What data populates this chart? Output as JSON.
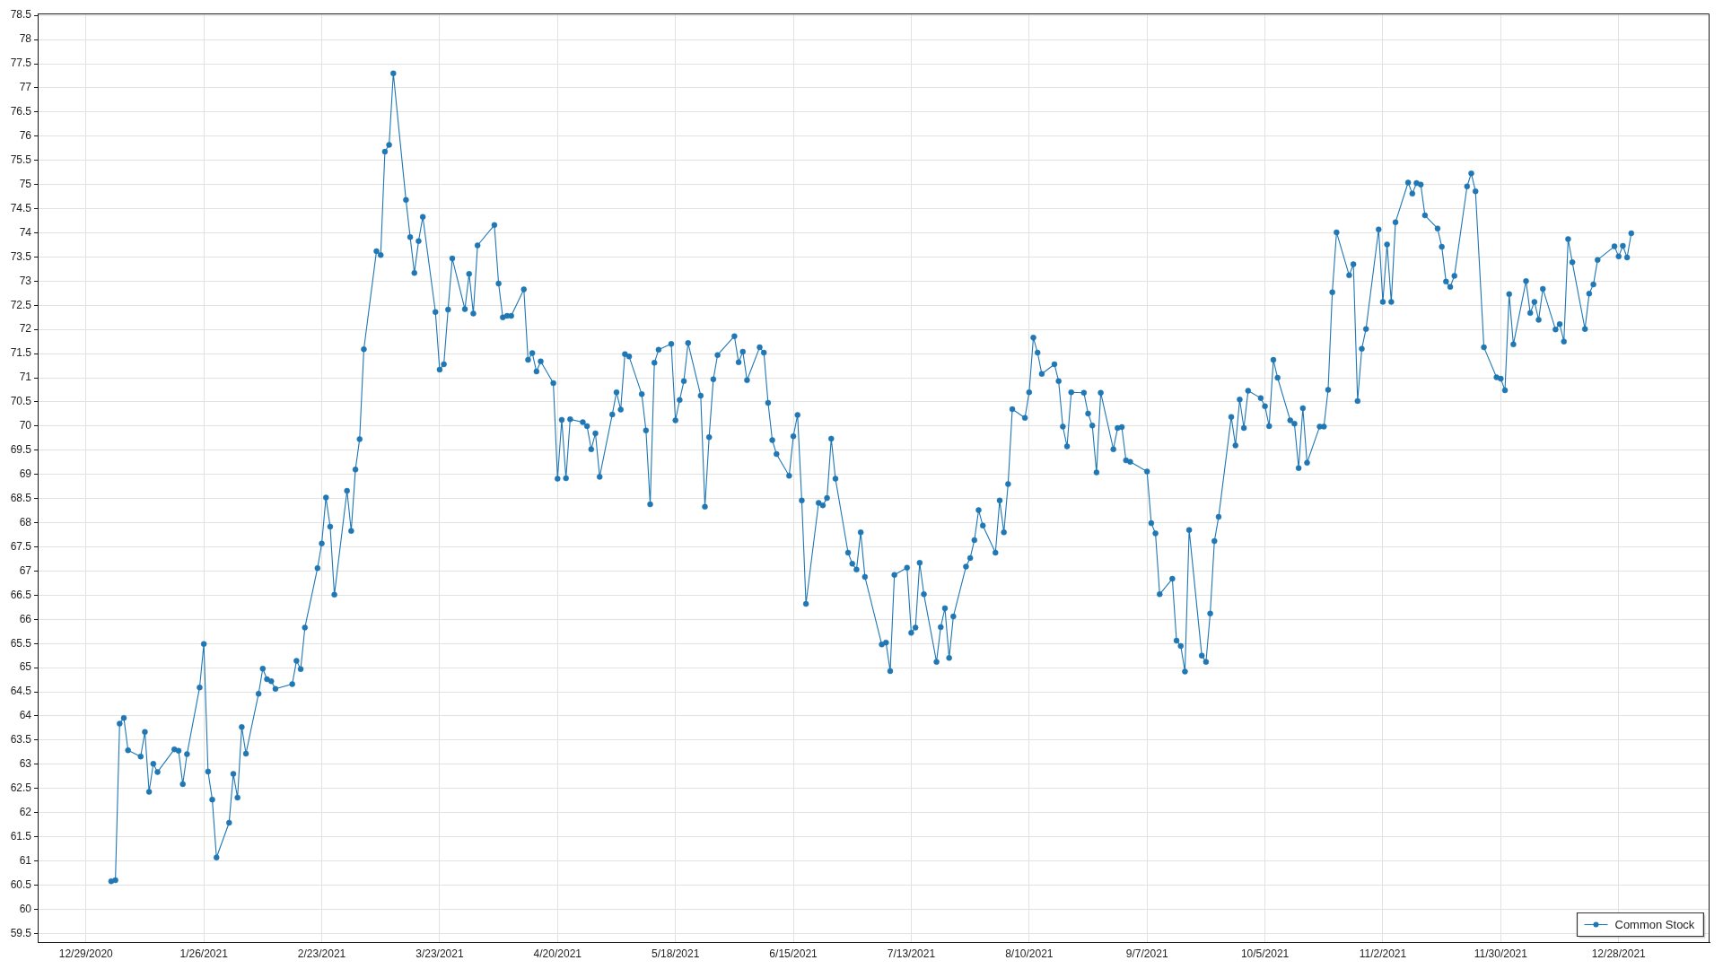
{
  "chart_data": {
    "type": "line",
    "xlim": [
      "2020-12-17T13:00",
      "2022-01-18T14:00"
    ],
    "xticks": [
      {
        "value": "2020-12-29",
        "label": "12/29/2020"
      },
      {
        "value": "2021-01-26",
        "label": "1/26/2021"
      },
      {
        "value": "2021-02-23",
        "label": "2/23/2021"
      },
      {
        "value": "2021-03-23",
        "label": "3/23/2021"
      },
      {
        "value": "2021-04-20",
        "label": "4/20/2021"
      },
      {
        "value": "2021-05-18",
        "label": "5/18/2021"
      },
      {
        "value": "2021-06-15",
        "label": "6/15/2021"
      },
      {
        "value": "2021-07-13",
        "label": "7/13/2021"
      },
      {
        "value": "2021-08-10",
        "label": "8/10/2021"
      },
      {
        "value": "2021-09-07",
        "label": "9/7/2021"
      },
      {
        "value": "2021-10-05",
        "label": "10/5/2021"
      },
      {
        "value": "2021-11-02",
        "label": "11/2/2021"
      },
      {
        "value": "2021-11-30",
        "label": "11/30/2021"
      },
      {
        "value": "2021-12-28",
        "label": "12/28/2021"
      }
    ],
    "ylim": [
      59.32,
      78.54
    ],
    "yticks": [
      59.5,
      60,
      60.5,
      61,
      61.5,
      62,
      62.5,
      63,
      63.5,
      64,
      64.5,
      65,
      65.5,
      66,
      66.5,
      67,
      67.5,
      68,
      68.5,
      69,
      69.5,
      70,
      70.5,
      71,
      71.5,
      72,
      72.5,
      73,
      73.5,
      74,
      74.5,
      75,
      75.5,
      76,
      76.5,
      77,
      77.5,
      78,
      78.5
    ],
    "grid": true,
    "legend": "bottom right",
    "marker": "circle",
    "line_style": "solid",
    "x": [
      "2021-01-04",
      "2021-01-05",
      "2021-01-06",
      "2021-01-07",
      "2021-01-08",
      "2021-01-11",
      "2021-01-12",
      "2021-01-13",
      "2021-01-14",
      "2021-01-15",
      "2021-01-19",
      "2021-01-20",
      "2021-01-21",
      "2021-01-22",
      "2021-01-25",
      "2021-01-26",
      "2021-01-27",
      "2021-01-28",
      "2021-01-29",
      "2021-02-01",
      "2021-02-02",
      "2021-02-03",
      "2021-02-04",
      "2021-02-05",
      "2021-02-08",
      "2021-02-09",
      "2021-02-10",
      "2021-02-11",
      "2021-02-12",
      "2021-02-16",
      "2021-02-17",
      "2021-02-18",
      "2021-02-19",
      "2021-02-22",
      "2021-02-23",
      "2021-02-24",
      "2021-02-25",
      "2021-02-26",
      "2021-03-01",
      "2021-03-02",
      "2021-03-03",
      "2021-03-04",
      "2021-03-05",
      "2021-03-08",
      "2021-03-09",
      "2021-03-10",
      "2021-03-11",
      "2021-03-12",
      "2021-03-15",
      "2021-03-16",
      "2021-03-17",
      "2021-03-18",
      "2021-03-19",
      "2021-03-22",
      "2021-03-23",
      "2021-03-24",
      "2021-03-25",
      "2021-03-26",
      "2021-03-29",
      "2021-03-30",
      "2021-03-31",
      "2021-04-01",
      "2021-04-05",
      "2021-04-06",
      "2021-04-07",
      "2021-04-08",
      "2021-04-09",
      "2021-04-12",
      "2021-04-13",
      "2021-04-14",
      "2021-04-15",
      "2021-04-16",
      "2021-04-19",
      "2021-04-20",
      "2021-04-21",
      "2021-04-22",
      "2021-04-23",
      "2021-04-26",
      "2021-04-27",
      "2021-04-28",
      "2021-04-29",
      "2021-04-30",
      "2021-05-03",
      "2021-05-04",
      "2021-05-05",
      "2021-05-06",
      "2021-05-07",
      "2021-05-10",
      "2021-05-11",
      "2021-05-12",
      "2021-05-13",
      "2021-05-14",
      "2021-05-17",
      "2021-05-18",
      "2021-05-19",
      "2021-05-20",
      "2021-05-21",
      "2021-05-24",
      "2021-05-25",
      "2021-05-26",
      "2021-05-27",
      "2021-05-28",
      "2021-06-01",
      "2021-06-02",
      "2021-06-03",
      "2021-06-04",
      "2021-06-07",
      "2021-06-08",
      "2021-06-09",
      "2021-06-10",
      "2021-06-11",
      "2021-06-14",
      "2021-06-15",
      "2021-06-16",
      "2021-06-17",
      "2021-06-18",
      "2021-06-21",
      "2021-06-22",
      "2021-06-23",
      "2021-06-24",
      "2021-06-25",
      "2021-06-28",
      "2021-06-29",
      "2021-06-30",
      "2021-07-01",
      "2021-07-02",
      "2021-07-06",
      "2021-07-07",
      "2021-07-08",
      "2021-07-09",
      "2021-07-12",
      "2021-07-13",
      "2021-07-14",
      "2021-07-15",
      "2021-07-16",
      "2021-07-19",
      "2021-07-20",
      "2021-07-21",
      "2021-07-22",
      "2021-07-23",
      "2021-07-26",
      "2021-07-27",
      "2021-07-28",
      "2021-07-29",
      "2021-07-30",
      "2021-08-02",
      "2021-08-03",
      "2021-08-04",
      "2021-08-05",
      "2021-08-06",
      "2021-08-09",
      "2021-08-10",
      "2021-08-11",
      "2021-08-12",
      "2021-08-13",
      "2021-08-16",
      "2021-08-17",
      "2021-08-18",
      "2021-08-19",
      "2021-08-20",
      "2021-08-23",
      "2021-08-24",
      "2021-08-25",
      "2021-08-26",
      "2021-08-27",
      "2021-08-30",
      "2021-08-31",
      "2021-09-01",
      "2021-09-02",
      "2021-09-03",
      "2021-09-07",
      "2021-09-08",
      "2021-09-09",
      "2021-09-10",
      "2021-09-13",
      "2021-09-14",
      "2021-09-15",
      "2021-09-16",
      "2021-09-17",
      "2021-09-20",
      "2021-09-21",
      "2021-09-22",
      "2021-09-23",
      "2021-09-24",
      "2021-09-27",
      "2021-09-28",
      "2021-09-29",
      "2021-09-30",
      "2021-10-01",
      "2021-10-04",
      "2021-10-05",
      "2021-10-06",
      "2021-10-07",
      "2021-10-08",
      "2021-10-11",
      "2021-10-12",
      "2021-10-13",
      "2021-10-14",
      "2021-10-15",
      "2021-10-18",
      "2021-10-19",
      "2021-10-20",
      "2021-10-21",
      "2021-10-22",
      "2021-10-25",
      "2021-10-26",
      "2021-10-27",
      "2021-10-28",
      "2021-10-29",
      "2021-11-01",
      "2021-11-02",
      "2021-11-03",
      "2021-11-04",
      "2021-11-05",
      "2021-11-08",
      "2021-11-09",
      "2021-11-10",
      "2021-11-11",
      "2021-11-12",
      "2021-11-15",
      "2021-11-16",
      "2021-11-17",
      "2021-11-18",
      "2021-11-19",
      "2021-11-22",
      "2021-11-23",
      "2021-11-24",
      "2021-11-26",
      "2021-11-29",
      "2021-11-30",
      "2021-12-01",
      "2021-12-02",
      "2021-12-03",
      "2021-12-06",
      "2021-12-07",
      "2021-12-08",
      "2021-12-09",
      "2021-12-10",
      "2021-12-13",
      "2021-12-14",
      "2021-12-15",
      "2021-12-16",
      "2021-12-17",
      "2021-12-20",
      "2021-12-21",
      "2021-12-22",
      "2021-12-23",
      "2021-12-27",
      "2021-12-28",
      "2021-12-29",
      "2021-12-30",
      "2021-12-31"
    ],
    "series": [
      {
        "name": "Common Stock",
        "color": "#1f77b4",
        "values": [
          60.58,
          60.6,
          63.84,
          63.96,
          63.29,
          63.16,
          63.67,
          62.43,
          63.01,
          62.84,
          63.31,
          63.28,
          62.59,
          63.21,
          64.59,
          65.49,
          62.85,
          62.27,
          61.07,
          61.79,
          62.8,
          62.31,
          63.77,
          63.22,
          64.46,
          64.98,
          64.76,
          64.72,
          64.56,
          64.66,
          65.14,
          64.97,
          65.83,
          67.06,
          67.57,
          68.52,
          67.92,
          66.51,
          68.66,
          67.83,
          69.1,
          69.73,
          71.59,
          73.62,
          73.54,
          75.68,
          75.82,
          77.3,
          74.68,
          73.91,
          73.17,
          73.83,
          74.33,
          72.36,
          71.17,
          71.28,
          72.41,
          73.47,
          72.42,
          73.15,
          72.33,
          73.74,
          74.16,
          72.95,
          72.25,
          72.28,
          72.28,
          72.83,
          71.37,
          71.51,
          71.13,
          71.34,
          70.89,
          68.91,
          70.13,
          68.92,
          70.14,
          70.08,
          70.0,
          69.52,
          69.85,
          68.95,
          70.24,
          70.7,
          70.34,
          71.49,
          71.44,
          70.66,
          69.91,
          68.38,
          71.31,
          71.58,
          71.7,
          70.12,
          70.54,
          70.93,
          71.72,
          70.63,
          68.33,
          69.77,
          70.97,
          71.47,
          71.86,
          71.32,
          71.54,
          70.95,
          71.63,
          71.52,
          70.48,
          69.71,
          69.42,
          68.97,
          69.79,
          70.23,
          68.46,
          66.32,
          68.41,
          68.36,
          68.51,
          69.74,
          68.91,
          67.38,
          67.15,
          67.03,
          67.8,
          66.88,
          65.48,
          65.52,
          64.93,
          66.92,
          67.07,
          65.72,
          65.83,
          67.17,
          66.52,
          65.12,
          65.84,
          66.23,
          65.2,
          66.06,
          67.09,
          67.27,
          67.64,
          68.26,
          67.94,
          67.38,
          68.46,
          67.8,
          68.8,
          70.35,
          70.17,
          70.7,
          71.83,
          71.52,
          71.08,
          71.28,
          70.93,
          69.99,
          69.58,
          70.7,
          70.69,
          70.26,
          70.01,
          69.04,
          70.69,
          69.52,
          69.96,
          69.98,
          69.29,
          69.26,
          69.06,
          67.99,
          67.78,
          66.52,
          66.84,
          65.56,
          65.45,
          64.92,
          67.85,
          65.25,
          65.12,
          66.12,
          67.62,
          68.12,
          70.19,
          69.6,
          70.55,
          69.96,
          70.73,
          70.58,
          70.41,
          70.0,
          71.37,
          71.0,
          70.12,
          70.05,
          69.13,
          70.37,
          69.24,
          69.99,
          69.99,
          70.75,
          72.77,
          74.01,
          73.12,
          73.35,
          70.52,
          71.6,
          72.01,
          74.07,
          72.57,
          73.76,
          72.57,
          74.22,
          75.04,
          74.81,
          75.03,
          75.0,
          74.36,
          74.09,
          73.71,
          72.99,
          72.88,
          73.11,
          74.96,
          75.23,
          74.86,
          71.63,
          71.01,
          70.98,
          70.74,
          72.73,
          71.69,
          73.0,
          72.34,
          72.57,
          72.2,
          72.84,
          72.0,
          72.11,
          71.75,
          73.87,
          73.39,
          72.01,
          72.74,
          72.93,
          73.44,
          73.72,
          73.51,
          73.73,
          73.49,
          73.99
        ]
      }
    ]
  }
}
